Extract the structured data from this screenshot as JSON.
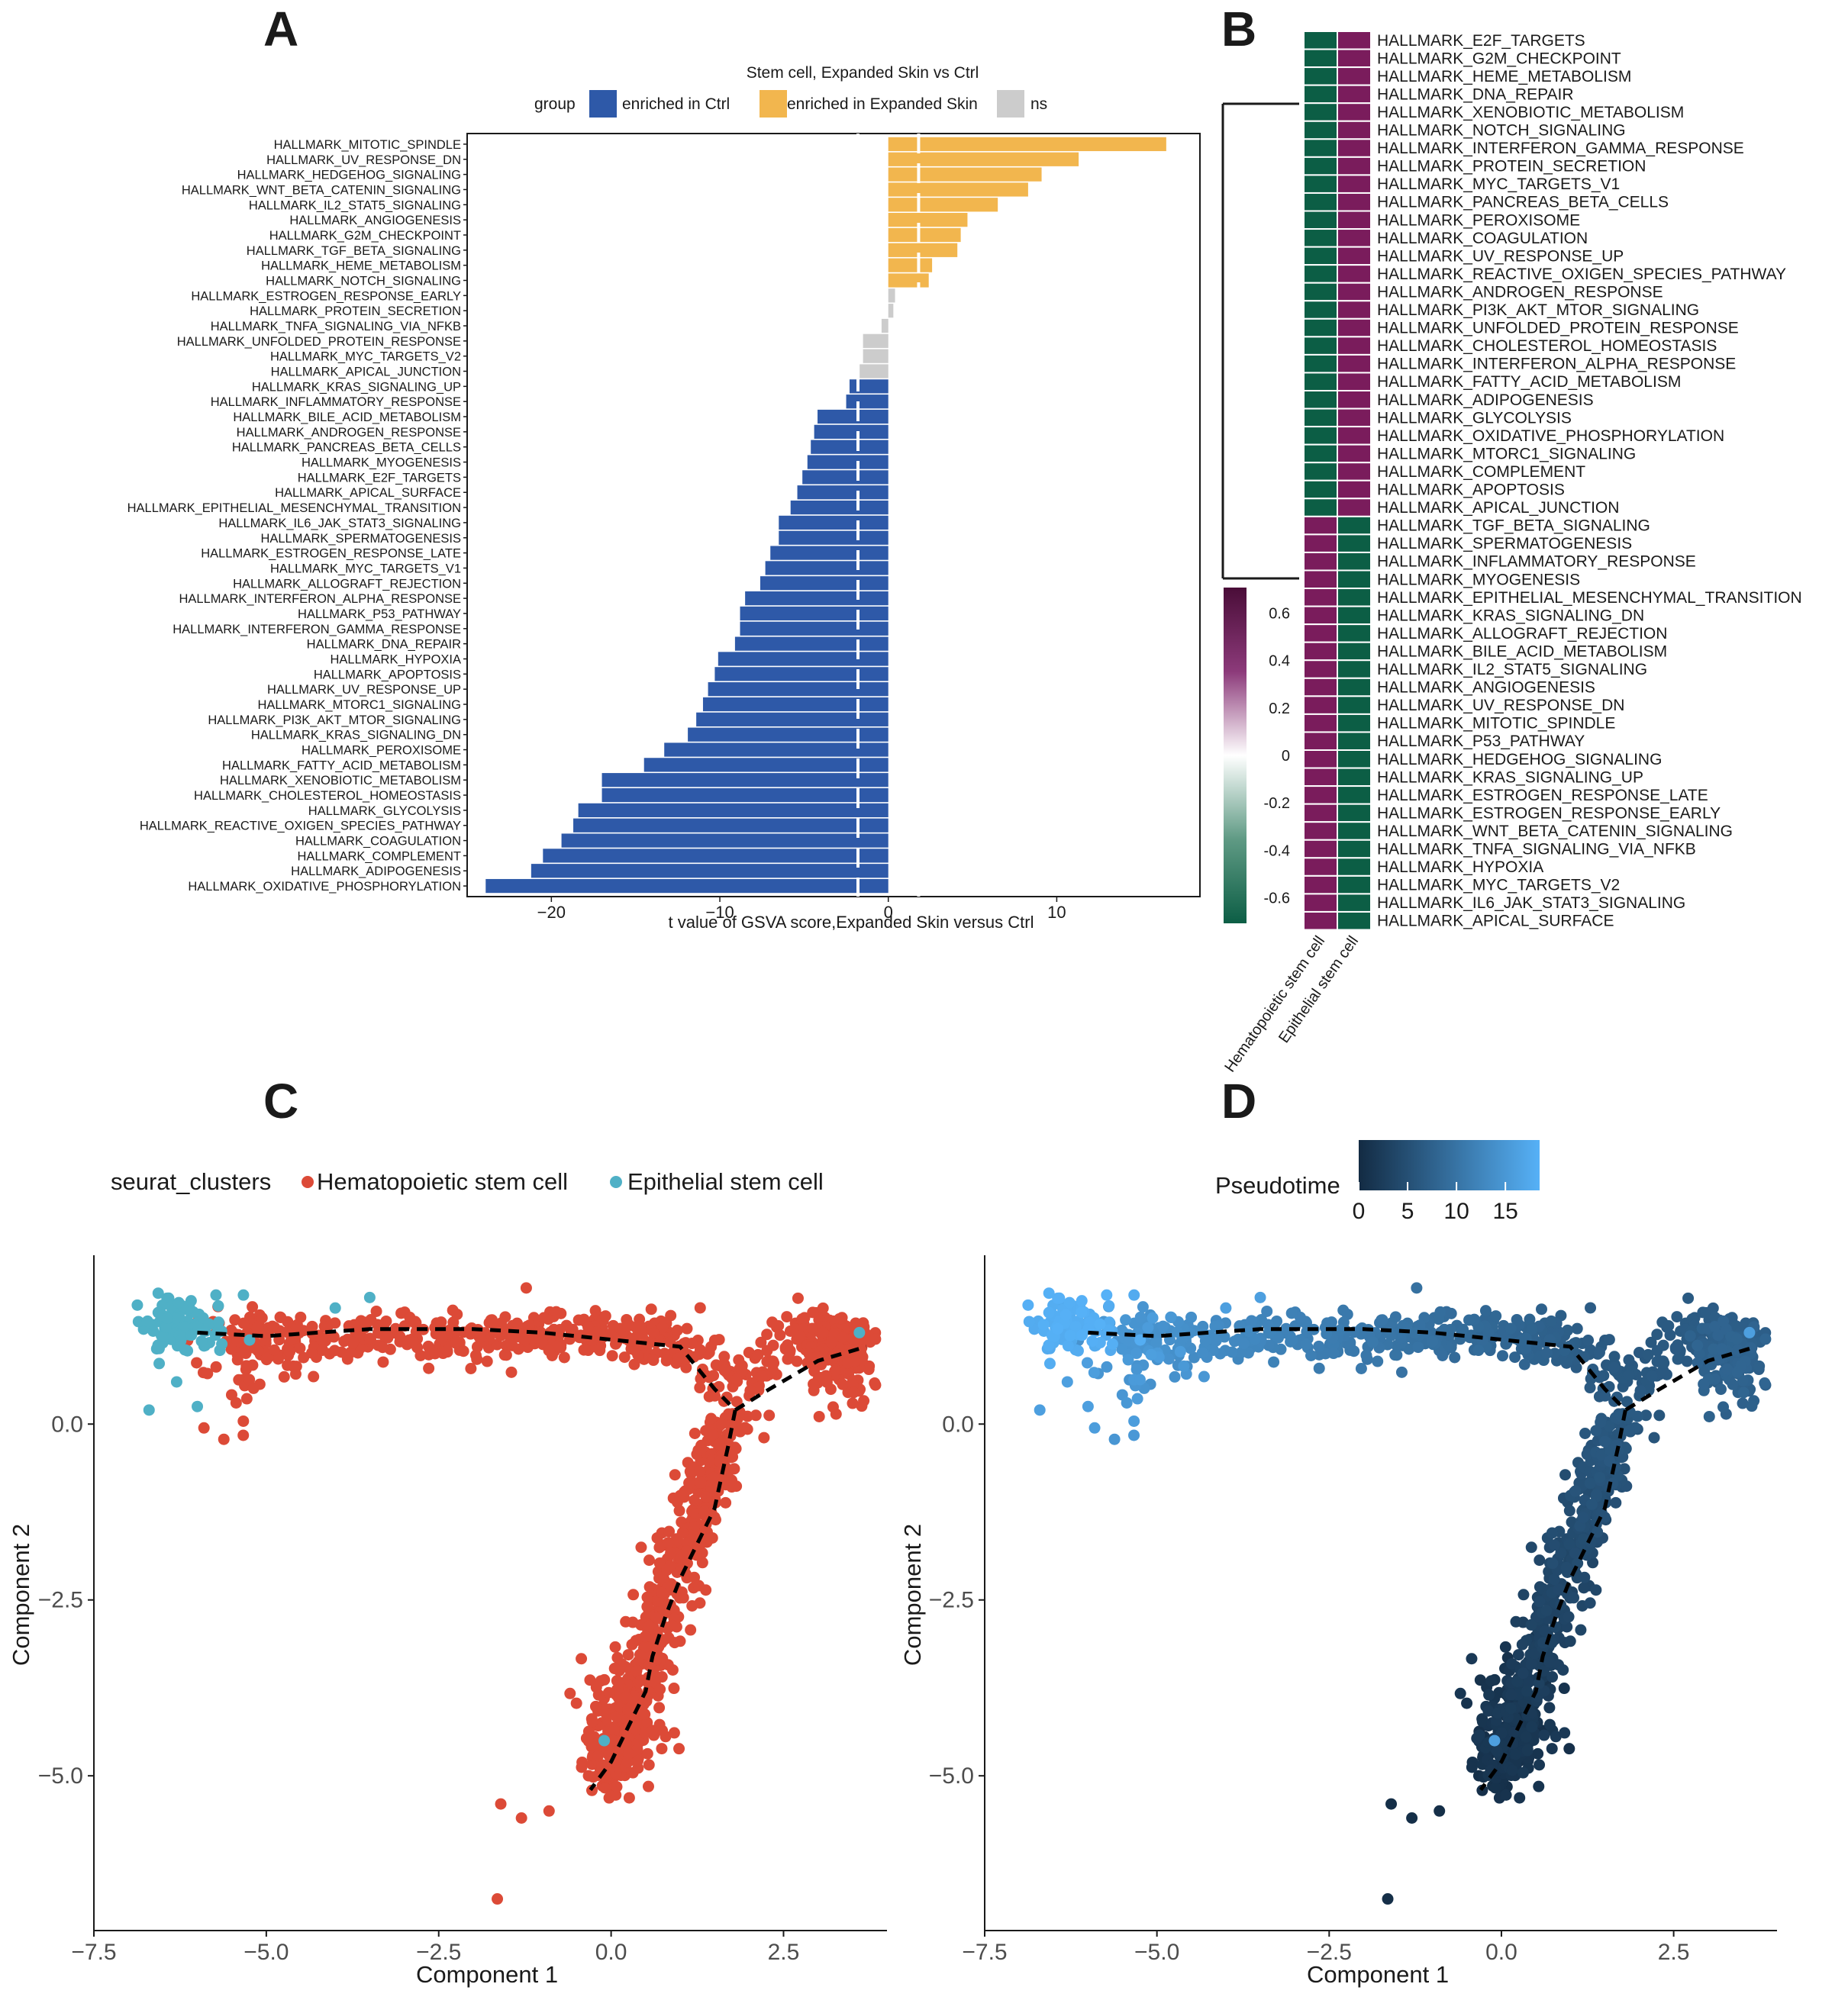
{
  "panel_letters": {
    "a": "A",
    "b": "B",
    "c": "C",
    "d": "D"
  },
  "colors": {
    "ctrl": "#2e59a8",
    "expanded": "#f2b64e",
    "ns": "#cccccc",
    "hm_low": "#0c5e45",
    "hm_high": "#7a1c5c",
    "hsc": "#dc4a37",
    "esc": "#4fb0c6",
    "pt_low": "#132b43",
    "pt_high": "#56b1f7"
  },
  "chart_data": [
    {
      "id": "A",
      "type": "bar",
      "orientation": "horizontal",
      "title": "Stem cell, Expanded Skin vs Ctrl",
      "legend": {
        "title": "group",
        "items": [
          "enriched in Ctrl",
          "enriched in Expanded Skin",
          "ns"
        ]
      },
      "xlabel": "t value of GSVA score,Expanded Skin versus Ctrl",
      "ylabel": "",
      "xlim": [
        -25,
        18.5
      ],
      "xticks": [
        -20,
        -10,
        0,
        10
      ],
      "threshold_lines": [
        -1.8,
        1.8
      ],
      "categories": [
        "HALLMARK_MITOTIC_SPINDLE",
        "HALLMARK_UV_RESPONSE_DN",
        "HALLMARK_HEDGEHOG_SIGNALING",
        "HALLMARK_WNT_BETA_CATENIN_SIGNALING",
        "HALLMARK_IL2_STAT5_SIGNALING",
        "HALLMARK_ANGIOGENESIS",
        "HALLMARK_G2M_CHECKPOINT",
        "HALLMARK_TGF_BETA_SIGNALING",
        "HALLMARK_HEME_METABOLISM",
        "HALLMARK_NOTCH_SIGNALING",
        "HALLMARK_ESTROGEN_RESPONSE_EARLY",
        "HALLMARK_PROTEIN_SECRETION",
        "HALLMARK_TNFA_SIGNALING_VIA_NFKB",
        "HALLMARK_UNFOLDED_PROTEIN_RESPONSE",
        "HALLMARK_MYC_TARGETS_V2",
        "HALLMARK_APICAL_JUNCTION",
        "HALLMARK_KRAS_SIGNALING_UP",
        "HALLMARK_INFLAMMATORY_RESPONSE",
        "HALLMARK_BILE_ACID_METABOLISM",
        "HALLMARK_ANDROGEN_RESPONSE",
        "HALLMARK_PANCREAS_BETA_CELLS",
        "HALLMARK_MYOGENESIS",
        "HALLMARK_E2F_TARGETS",
        "HALLMARK_APICAL_SURFACE",
        "HALLMARK_EPITHELIAL_MESENCHYMAL_TRANSITION",
        "HALLMARK_IL6_JAK_STAT3_SIGNALING",
        "HALLMARK_SPERMATOGENESIS",
        "HALLMARK_ESTROGEN_RESPONSE_LATE",
        "HALLMARK_MYC_TARGETS_V1",
        "HALLMARK_ALLOGRAFT_REJECTION",
        "HALLMARK_INTERFERON_ALPHA_RESPONSE",
        "HALLMARK_P53_PATHWAY",
        "HALLMARK_INTERFERON_GAMMA_RESPONSE",
        "HALLMARK_DNA_REPAIR",
        "HALLMARK_HYPOXIA",
        "HALLMARK_APOPTOSIS",
        "HALLMARK_UV_RESPONSE_UP",
        "HALLMARK_MTORC1_SIGNALING",
        "HALLMARK_PI3K_AKT_MTOR_SIGNALING",
        "HALLMARK_KRAS_SIGNALING_DN",
        "HALLMARK_PEROXISOME",
        "HALLMARK_FATTY_ACID_METABOLISM",
        "HALLMARK_XENOBIOTIC_METABOLISM",
        "HALLMARK_CHOLESTEROL_HOMEOSTASIS",
        "HALLMARK_GLYCOLYSIS",
        "HALLMARK_REACTIVE_OXIGEN_SPECIES_PATHWAY",
        "HALLMARK_COAGULATION",
        "HALLMARK_COMPLEMENT",
        "HALLMARK_ADIPOGENESIS",
        "HALLMARK_OXIDATIVE_PHOSPHORYLATION"
      ],
      "values": [
        16.5,
        11.3,
        9.1,
        8.3,
        6.5,
        4.7,
        4.3,
        4.1,
        2.6,
        2.4,
        0.4,
        0.3,
        -0.4,
        -1.5,
        -1.5,
        -1.7,
        -2.3,
        -2.5,
        -4.2,
        -4.4,
        -4.6,
        -4.8,
        -5.1,
        -5.4,
        -5.8,
        -6.5,
        -6.5,
        -7.0,
        -7.3,
        -7.6,
        -8.5,
        -8.8,
        -8.8,
        -9.1,
        -10.1,
        -10.3,
        -10.7,
        -11.0,
        -11.4,
        -11.9,
        -13.3,
        -14.5,
        -17.0,
        -17.0,
        -18.4,
        -18.7,
        -19.4,
        -20.5,
        -21.2,
        -23.9
      ],
      "groups": [
        "enriched in Expanded Skin",
        "enriched in Expanded Skin",
        "enriched in Expanded Skin",
        "enriched in Expanded Skin",
        "enriched in Expanded Skin",
        "enriched in Expanded Skin",
        "enriched in Expanded Skin",
        "enriched in Expanded Skin",
        "enriched in Expanded Skin",
        "enriched in Expanded Skin",
        "ns",
        "ns",
        "ns",
        "ns",
        "ns",
        "ns",
        "enriched in Ctrl",
        "enriched in Ctrl",
        "enriched in Ctrl",
        "enriched in Ctrl",
        "enriched in Ctrl",
        "enriched in Ctrl",
        "enriched in Ctrl",
        "enriched in Ctrl",
        "enriched in Ctrl",
        "enriched in Ctrl",
        "enriched in Ctrl",
        "enriched in Ctrl",
        "enriched in Ctrl",
        "enriched in Ctrl",
        "enriched in Ctrl",
        "enriched in Ctrl",
        "enriched in Ctrl",
        "enriched in Ctrl",
        "enriched in Ctrl",
        "enriched in Ctrl",
        "enriched in Ctrl",
        "enriched in Ctrl",
        "enriched in Ctrl",
        "enriched in Ctrl",
        "enriched in Ctrl",
        "enriched in Ctrl",
        "enriched in Ctrl",
        "enriched in Ctrl",
        "enriched in Ctrl",
        "enriched in Ctrl",
        "enriched in Ctrl",
        "enriched in Ctrl",
        "enriched in Ctrl",
        "enriched in Ctrl"
      ]
    },
    {
      "id": "B",
      "type": "heatmap",
      "columns": [
        "Hematopoietic stem cell",
        "Epithelial stem cell"
      ],
      "rows": [
        "HALLMARK_E2F_TARGETS",
        "HALLMARK_G2M_CHECKPOINT",
        "HALLMARK_HEME_METABOLISM",
        "HALLMARK_DNA_REPAIR",
        "HALLMARK_XENOBIOTIC_METABOLISM",
        "HALLMARK_NOTCH_SIGNALING",
        "HALLMARK_INTERFERON_GAMMA_RESPONSE",
        "HALLMARK_PROTEIN_SECRETION",
        "HALLMARK_MYC_TARGETS_V1",
        "HALLMARK_PANCREAS_BETA_CELLS",
        "HALLMARK_PEROXISOME",
        "HALLMARK_COAGULATION",
        "HALLMARK_UV_RESPONSE_UP",
        "HALLMARK_REACTIVE_OXIGEN_SPECIES_PATHWAY",
        "HALLMARK_ANDROGEN_RESPONSE",
        "HALLMARK_PI3K_AKT_MTOR_SIGNALING",
        "HALLMARK_UNFOLDED_PROTEIN_RESPONSE",
        "HALLMARK_CHOLESTEROL_HOMEOSTASIS",
        "HALLMARK_INTERFERON_ALPHA_RESPONSE",
        "HALLMARK_FATTY_ACID_METABOLISM",
        "HALLMARK_ADIPOGENESIS",
        "HALLMARK_GLYCOLYSIS",
        "HALLMARK_OXIDATIVE_PHOSPHORYLATION",
        "HALLMARK_MTORC1_SIGNALING",
        "HALLMARK_COMPLEMENT",
        "HALLMARK_APOPTOSIS",
        "HALLMARK_APICAL_JUNCTION",
        "HALLMARK_TGF_BETA_SIGNALING",
        "HALLMARK_SPERMATOGENESIS",
        "HALLMARK_INFLAMMATORY_RESPONSE",
        "HALLMARK_MYOGENESIS",
        "HALLMARK_EPITHELIAL_MESENCHYMAL_TRANSITION",
        "HALLMARK_KRAS_SIGNALING_DN",
        "HALLMARK_ALLOGRAFT_REJECTION",
        "HALLMARK_BILE_ACID_METABOLISM",
        "HALLMARK_IL2_STAT5_SIGNALING",
        "HALLMARK_ANGIOGENESIS",
        "HALLMARK_UV_RESPONSE_DN",
        "HALLMARK_MITOTIC_SPINDLE",
        "HALLMARK_P53_PATHWAY",
        "HALLMARK_HEDGEHOG_SIGNALING",
        "HALLMARK_KRAS_SIGNALING_UP",
        "HALLMARK_ESTROGEN_RESPONSE_LATE",
        "HALLMARK_ESTROGEN_RESPONSE_EARLY",
        "HALLMARK_WNT_BETA_CATENIN_SIGNALING",
        "HALLMARK_TNFA_SIGNALING_VIA_NFKB",
        "HALLMARK_HYPOXIA",
        "HALLMARK_MYC_TARGETS_V2",
        "HALLMARK_IL6_JAK_STAT3_SIGNALING",
        "HALLMARK_APICAL_SURFACE"
      ],
      "values_note": "first 27 rows: HSC -0.707, ESC 0.707; last 23 rows: HSC 0.707, ESC -0.707",
      "hsc_values": [
        -0.707,
        -0.707,
        -0.707,
        -0.707,
        -0.707,
        -0.707,
        -0.707,
        -0.707,
        -0.707,
        -0.707,
        -0.707,
        -0.707,
        -0.707,
        -0.707,
        -0.707,
        -0.707,
        -0.707,
        -0.707,
        -0.707,
        -0.707,
        -0.707,
        -0.707,
        -0.707,
        -0.707,
        -0.707,
        -0.707,
        -0.707,
        0.707,
        0.707,
        0.707,
        0.707,
        0.707,
        0.707,
        0.707,
        0.707,
        0.707,
        0.707,
        0.707,
        0.707,
        0.707,
        0.707,
        0.707,
        0.707,
        0.707,
        0.707,
        0.707,
        0.707,
        0.707,
        0.707,
        0.707
      ],
      "esc_values": [
        0.707,
        0.707,
        0.707,
        0.707,
        0.707,
        0.707,
        0.707,
        0.707,
        0.707,
        0.707,
        0.707,
        0.707,
        0.707,
        0.707,
        0.707,
        0.707,
        0.707,
        0.707,
        0.707,
        0.707,
        0.707,
        0.707,
        0.707,
        0.707,
        0.707,
        0.707,
        0.707,
        -0.707,
        -0.707,
        -0.707,
        -0.707,
        -0.707,
        -0.707,
        -0.707,
        -0.707,
        -0.707,
        -0.707,
        -0.707,
        -0.707,
        -0.707,
        -0.707,
        -0.707,
        -0.707,
        -0.707,
        -0.707,
        -0.707,
        -0.707,
        -0.707,
        -0.707,
        -0.707
      ],
      "colorbar_ticks": [
        "0.6",
        "0.4",
        "0.2",
        "0",
        "-0.2",
        "-0.4",
        "-0.6"
      ],
      "colorbar_tick_values": [
        0.6,
        0.4,
        0.2,
        0,
        -0.2,
        -0.4,
        -0.6
      ],
      "colorbar_range": [
        -0.707,
        0.707
      ]
    },
    {
      "id": "C",
      "type": "scatter",
      "legend_title": "seurat_clusters",
      "legend_items": [
        "Hematopoietic stem cell",
        "Epithelial stem cell"
      ],
      "xlabel": "Component 1",
      "ylabel": "Component 2",
      "xlim": [
        -7.5,
        4.0
      ],
      "ylim": [
        -7.2,
        2.4
      ],
      "xticks": [
        "-7.5",
        "-5.0",
        "-2.5",
        "0.0",
        "2.5"
      ],
      "xtick_values": [
        -7.5,
        -5.0,
        -2.5,
        0.0,
        2.5
      ],
      "yticks": [
        "0.0",
        "-2.5",
        "-5.0"
      ],
      "ytick_values": [
        0.0,
        -2.5,
        -5.0
      ],
      "trajectory": [
        [
          -6.0,
          1.3
        ],
        [
          -5.0,
          1.25
        ],
        [
          -3.5,
          1.35
        ],
        [
          -2.0,
          1.35
        ],
        [
          -1.0,
          1.3
        ],
        [
          0.0,
          1.2
        ],
        [
          1.0,
          1.1
        ],
        [
          1.5,
          0.5
        ],
        [
          1.8,
          0.2
        ],
        [
          2.3,
          0.5
        ],
        [
          3.0,
          0.9
        ],
        [
          3.7,
          1.1
        ],
        [
          1.8,
          0.2
        ],
        [
          1.7,
          -0.3
        ],
        [
          1.5,
          -1.2
        ],
        [
          1.2,
          -1.8
        ],
        [
          1.0,
          -2.2
        ],
        [
          0.8,
          -2.7
        ],
        [
          0.6,
          -3.3
        ],
        [
          0.5,
          -3.8
        ],
        [
          0.3,
          -4.2
        ],
        [
          0.0,
          -4.8
        ],
        [
          -0.3,
          -5.2
        ]
      ],
      "points_note": "point cloud generated along trajectory; ~1200 Hematopoietic stem cell points and ~90 Epithelial stem cell points clustered near (-6.2, 1.4)"
    },
    {
      "id": "D",
      "type": "scatter",
      "legend_title": "Pseudotime",
      "legend_ticks": [
        "0",
        "5",
        "10",
        "15"
      ],
      "legend_tick_values": [
        0,
        5,
        10,
        15
      ],
      "pseudotime_range": [
        0,
        18.5
      ],
      "xlabel": "Component 1",
      "ylabel": "Component 2",
      "xlim": [
        -7.5,
        4.0
      ],
      "ylim": [
        -7.2,
        2.4
      ],
      "xticks": [
        "-7.5",
        "-5.0",
        "-2.5",
        "0.0",
        "2.5"
      ],
      "xtick_values": [
        -7.5,
        -5.0,
        -2.5,
        0.0,
        2.5
      ],
      "yticks": [
        "0.0",
        "-2.5",
        "-5.0"
      ],
      "ytick_values": [
        0.0,
        -2.5,
        -5.0
      ]
    }
  ]
}
